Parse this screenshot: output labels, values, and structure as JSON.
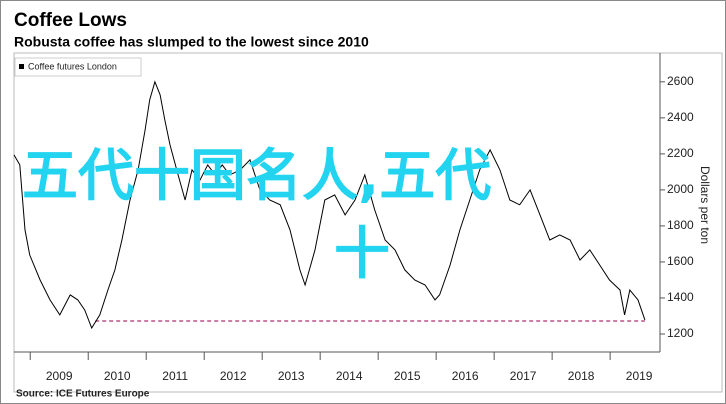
{
  "chart_data": {
    "type": "line",
    "title": "Coffee Lows",
    "subtitle": "Robusta coffee has slumped to the lowest since 2010",
    "source": "Source: ICE Futures Europe",
    "y_axis_label": "Dollars per ton",
    "overlay_text": [
      "五代十国名人,五代",
      "十"
    ],
    "legend_position": "top-left",
    "grid": false,
    "series": [
      {
        "name": "Coffee futures London",
        "color": "#000000",
        "x": [
          2008.72,
          2008.82,
          2008.91,
          2008.99,
          2009.17,
          2009.34,
          2009.51,
          2009.69,
          2009.82,
          2009.94,
          2010.06,
          2010.2,
          2010.34,
          2010.46,
          2010.58,
          2010.72,
          2010.86,
          2010.98,
          2011.06,
          2011.15,
          2011.24,
          2011.32,
          2011.41,
          2011.55,
          2011.67,
          2011.79,
          2011.93,
          2012.06,
          2012.19,
          2012.31,
          2012.44,
          2012.62,
          2012.79,
          2012.96,
          2013.13,
          2013.31,
          2013.48,
          2013.65,
          2013.74,
          2013.91,
          2014.08,
          2014.25,
          2014.43,
          2014.6,
          2014.77,
          2014.94,
          2015.12,
          2015.29,
          2015.46,
          2015.63,
          2015.81,
          2015.98,
          2016.06,
          2016.24,
          2016.41,
          2016.58,
          2016.75,
          2016.93,
          2017.1,
          2017.27,
          2017.44,
          2017.62,
          2017.79,
          2017.96,
          2018.13,
          2018.31,
          2018.48,
          2018.65,
          2018.82,
          2018.99,
          2019.17,
          2019.25,
          2019.34,
          2019.48,
          2019.6
        ],
        "values": [
          2194,
          2139,
          1778,
          1639,
          1500,
          1389,
          1306,
          1417,
          1389,
          1333,
          1233,
          1306,
          1444,
          1556,
          1722,
          1944,
          2111,
          2333,
          2500,
          2600,
          2528,
          2389,
          2250,
          2083,
          1944,
          2111,
          2056,
          2139,
          2083,
          2139,
          2083,
          2111,
          2167,
          2000,
          1944,
          1917,
          1778,
          1556,
          1472,
          1667,
          1944,
          1972,
          1861,
          1944,
          2083,
          1889,
          1722,
          1667,
          1556,
          1500,
          1472,
          1389,
          1417,
          1583,
          1778,
          1944,
          2111,
          2222,
          2111,
          1944,
          1917,
          2000,
          1861,
          1722,
          1750,
          1722,
          1611,
          1667,
          1583,
          1500,
          1444,
          1306,
          1444,
          1389,
          1278
        ]
      }
    ],
    "reference_line": {
      "value": 1272,
      "x": [
        2010.12,
        2019.6
      ],
      "color": "#b0306e"
    },
    "xlim": [
      2008.72,
      2019.86
    ],
    "xticks": [
      2009,
      2010,
      2011,
      2012,
      2013,
      2014,
      2015,
      2016,
      2017,
      2018,
      2019
    ],
    "ylim": [
      1100,
      2760
    ],
    "yticks": [
      1200,
      1400,
      1600,
      1800,
      2000,
      2200,
      2400,
      2600
    ]
  }
}
